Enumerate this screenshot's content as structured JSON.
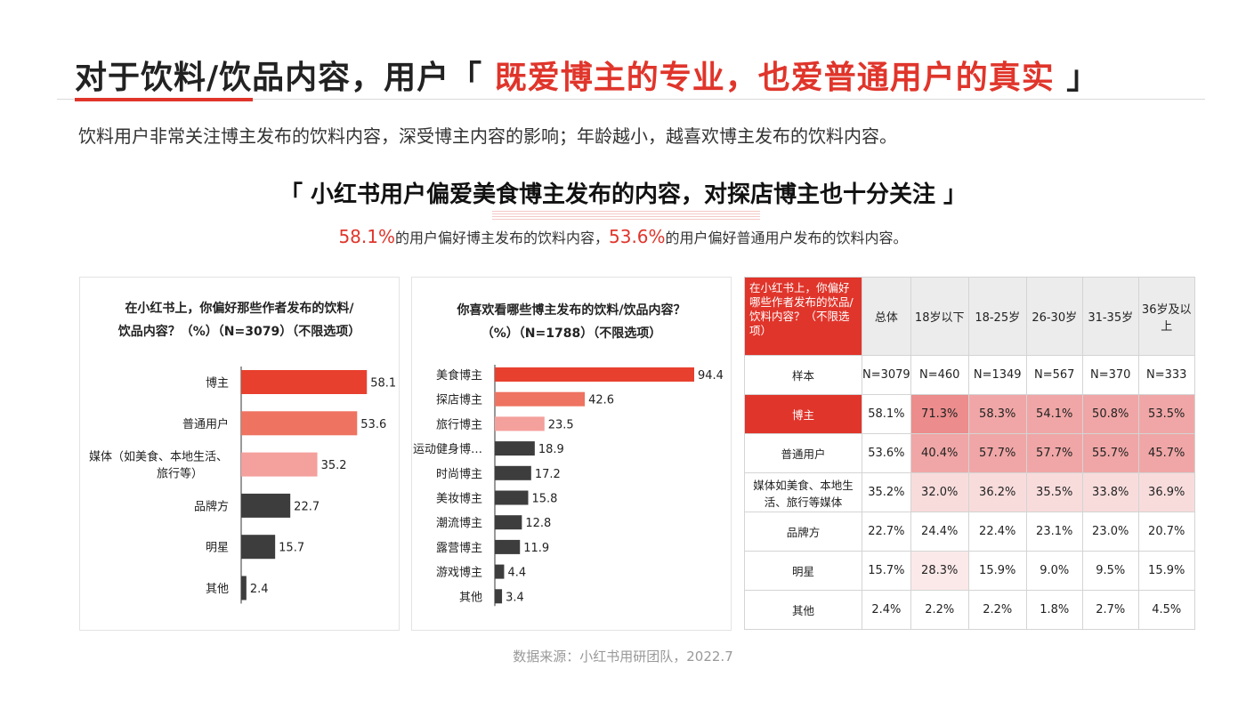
{
  "title": {
    "prefix": "对于饮料/饮品内容，用户「 ",
    "highlight": "既爱博主的专业，也爱普通用户的真实",
    "suffix": " 」"
  },
  "subtitle": "饮料用户非常关注博主发布的饮料内容，深受博主内容的影响；年龄越小，越喜欢博主发布的饮料内容。",
  "quote": "「 小红书用户偏爱美食博主发布的内容，对探店博主也十分关注 」",
  "stat": {
    "v1": "58.1%",
    "t1": "的用户偏好博主发布的饮料内容，",
    "v2": "53.6%",
    "t2": "的用户偏好普通用户发布的饮料内容。"
  },
  "source": "数据来源：小红书用研团队，2022.7",
  "colors": {
    "accent": "#e0352b",
    "bar1": "#e8402e",
    "bar2": "#ee7360",
    "bar3": "#f4a09c",
    "bar_dark": "#3d3d3d",
    "heat_high": "#ec8c8c",
    "heat_mid": "#f0a6a6",
    "heat_low": "#f8dcdc",
    "heat_faint": "#fbe9e9"
  },
  "chart_data": [
    {
      "type": "bar",
      "orientation": "horizontal",
      "title_lines": [
        "在小红书上，你偏好那些作者发布的饮料/",
        "饮品内容？（%）（N=3079）（不限选项）"
      ],
      "categories": [
        "博主",
        "普通用户",
        "媒体（如美食、本地生活、旅行等）",
        "品牌方",
        "明星",
        "其他"
      ],
      "category_lines": [
        [
          "博主"
        ],
        [
          "普通用户"
        ],
        [
          "媒体（如美食、本地生活、",
          "旅行等）"
        ],
        [
          "品牌方"
        ],
        [
          "明星"
        ],
        [
          "其他"
        ]
      ],
      "values": [
        58.1,
        53.6,
        35.2,
        22.7,
        15.7,
        2.4
      ],
      "bar_colors": [
        "#e8402e",
        "#ee7360",
        "#f4a09c",
        "#3d3d3d",
        "#3d3d3d",
        "#3d3d3d"
      ],
      "xlim": [
        0,
        65
      ]
    },
    {
      "type": "bar",
      "orientation": "horizontal",
      "title_lines": [
        "你喜欢看哪些博主发布的饮料/饮品内容？",
        "（%）（N=1788）（不限选项）"
      ],
      "categories": [
        "美食博主",
        "探店博主",
        "旅行博主",
        "运动健身博…",
        "时尚博主",
        "美妆博主",
        "潮流博主",
        "露营博主",
        "游戏博主",
        "其他"
      ],
      "values": [
        94.4,
        42.6,
        23.5,
        18.9,
        17.2,
        15.8,
        12.8,
        11.9,
        4.4,
        3.4
      ],
      "bar_colors": [
        "#e8402e",
        "#ee7360",
        "#f4a09c",
        "#3d3d3d",
        "#3d3d3d",
        "#3d3d3d",
        "#3d3d3d",
        "#3d3d3d",
        "#3d3d3d",
        "#3d3d3d"
      ],
      "xlim": [
        0,
        100
      ]
    },
    {
      "type": "table",
      "corner_label": "在小红书上，你偏好哪些作者发布的饮品/饮料内容？（不限选项）",
      "columns": [
        "总体",
        "18岁以下",
        "18-25岁",
        "26-30岁",
        "31-35岁",
        "36岁及以上"
      ],
      "sample_label": "样本",
      "sample": [
        "N=3079",
        "N=460",
        "N=1349",
        "N=567",
        "N=370",
        "N=333"
      ],
      "rows": [
        {
          "label": "博主",
          "cells": [
            "58.1%",
            "71.3%",
            "58.3%",
            "54.1%",
            "50.8%",
            "53.5%"
          ],
          "highlight": "red"
        },
        {
          "label": "普通用户",
          "cells": [
            "53.6%",
            "40.4%",
            "57.7%",
            "57.7%",
            "55.7%",
            "45.7%"
          ]
        },
        {
          "label": "媒体如美食、本地生活、旅行等媒体",
          "cells": [
            "35.2%",
            "32.0%",
            "36.2%",
            "35.5%",
            "33.8%",
            "36.9%"
          ]
        },
        {
          "label": "品牌方",
          "cells": [
            "22.7%",
            "24.4%",
            "22.4%",
            "23.1%",
            "23.0%",
            "20.7%"
          ]
        },
        {
          "label": "明星",
          "cells": [
            "15.7%",
            "28.3%",
            "15.9%",
            "9.0%",
            "9.5%",
            "15.9%"
          ]
        },
        {
          "label": "其他",
          "cells": [
            "2.4%",
            "2.2%",
            "2.2%",
            "1.8%",
            "2.7%",
            "4.5%"
          ]
        }
      ],
      "shading": [
        [
          "",
          "high",
          "mid",
          "mid",
          "mid",
          "mid"
        ],
        [
          "",
          "mid",
          "mid",
          "mid",
          "mid",
          "mid"
        ],
        [
          "",
          "low",
          "low",
          "low",
          "low",
          "low"
        ],
        [
          "",
          "",
          "",
          "",
          "",
          ""
        ],
        [
          "",
          "faint",
          "",
          "",
          "",
          ""
        ],
        [
          "",
          "",
          "",
          "",
          "",
          ""
        ]
      ]
    }
  ]
}
